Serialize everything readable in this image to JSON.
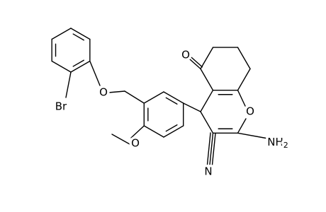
{
  "molecule": {
    "atoms": {
      "bromine": "Br",
      "ether_oxygen": "O",
      "methoxy_oxygen": "O",
      "carbonyl_oxygen": "O",
      "ring_oxygen": "O",
      "amino": {
        "text": "NH",
        "subscript": "2"
      },
      "nitrile_nitrogen": "N"
    }
  }
}
